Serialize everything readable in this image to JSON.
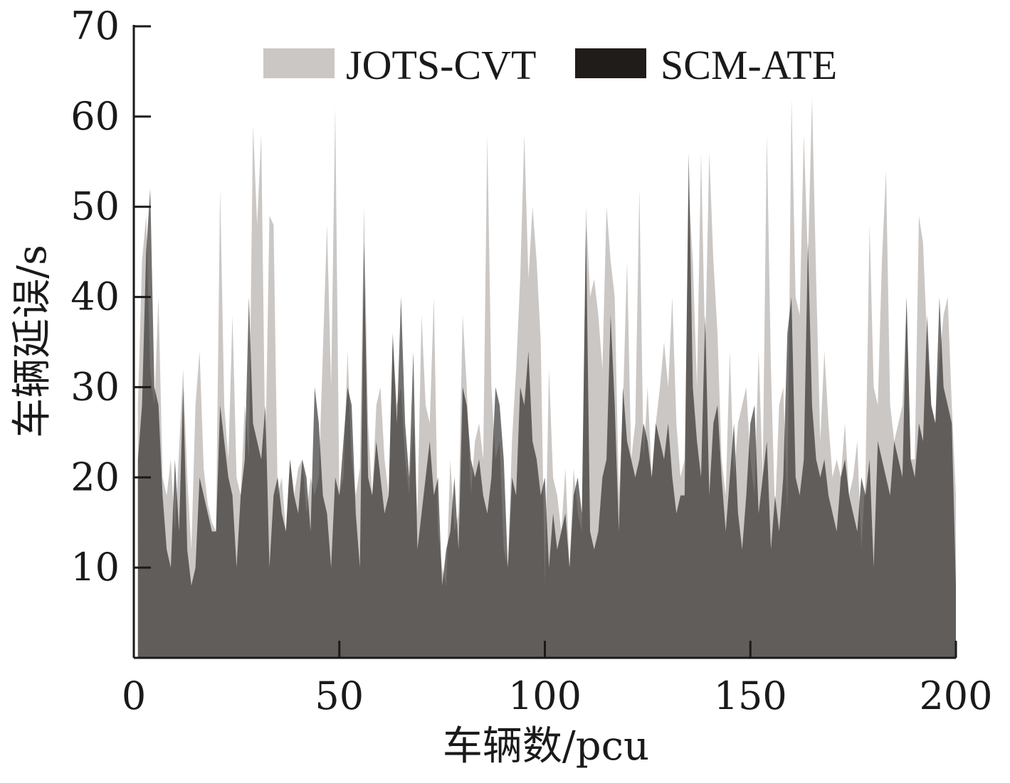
{
  "chart_data": {
    "type": "area",
    "title": "",
    "xlabel": "车辆数/pcu",
    "ylabel": "车辆延误/s",
    "xlim": [
      0,
      200
    ],
    "ylim": [
      0,
      70
    ],
    "xticks": [
      0,
      50,
      100,
      150,
      200
    ],
    "yticks": [
      10,
      20,
      30,
      40,
      50,
      60,
      70
    ],
    "legend_position": "top-center",
    "grid": false,
    "series": [
      {
        "name": "JOTS-CVT",
        "color": "#cbc7c4",
        "values": [
          28,
          44,
          49,
          32,
          28,
          40,
          20,
          18,
          22,
          14,
          23,
          32,
          20,
          12,
          28,
          34,
          21,
          17,
          15,
          14,
          52,
          28,
          22,
          38,
          20,
          18,
          28,
          22,
          59,
          48,
          58,
          22,
          49,
          48,
          18,
          20,
          14,
          22,
          18,
          21,
          22,
          16,
          20,
          18,
          20,
          34,
          48,
          30,
          61,
          18,
          20,
          34,
          22,
          18,
          21,
          50,
          26,
          18,
          28,
          30,
          22,
          18,
          35,
          28,
          30,
          22,
          18,
          26,
          16,
          38,
          28,
          26,
          40,
          14,
          10,
          8,
          22,
          14,
          16,
          38,
          30,
          18,
          24,
          26,
          22,
          58,
          30,
          22,
          24,
          12,
          10,
          24,
          32,
          42,
          58,
          42,
          50,
          44,
          35,
          8,
          32,
          20,
          18,
          14,
          21,
          10,
          21,
          16,
          14,
          50,
          40,
          42,
          38,
          32,
          50,
          44,
          40,
          18,
          28,
          44,
          22,
          26,
          52,
          22,
          30,
          20,
          26,
          30,
          35,
          30,
          40,
          26,
          20,
          22,
          52,
          44,
          30,
          56,
          34,
          56,
          44,
          36,
          22,
          18,
          34,
          20,
          26,
          28,
          30,
          22,
          18,
          34,
          20,
          58,
          32,
          16,
          28,
          30,
          16,
          62,
          40,
          38,
          58,
          44,
          62,
          42,
          24,
          34,
          26,
          20,
          22,
          20,
          26,
          18,
          20,
          24,
          12,
          20,
          48,
          30,
          28,
          44,
          54,
          28,
          24,
          26,
          28,
          40,
          22,
          22,
          49,
          46,
          35,
          28,
          26,
          33,
          38,
          40,
          28,
          18
        ]
      },
      {
        "name": "SCM-ATE",
        "color": "#1f1c1a",
        "values": [
          22,
          28,
          45,
          52,
          30,
          28,
          18,
          12,
          10,
          22,
          14,
          30,
          12,
          8,
          10,
          20,
          18,
          16,
          14,
          14,
          28,
          24,
          20,
          18,
          10,
          18,
          22,
          40,
          26,
          24,
          22,
          28,
          10,
          18,
          20,
          16,
          14,
          22,
          18,
          16,
          22,
          20,
          14,
          30,
          26,
          18,
          16,
          10,
          20,
          18,
          24,
          30,
          28,
          16,
          10,
          46,
          20,
          18,
          24,
          20,
          16,
          18,
          36,
          26,
          40,
          26,
          20,
          34,
          12,
          16,
          20,
          24,
          18,
          20,
          8,
          12,
          14,
          20,
          12,
          30,
          28,
          22,
          20,
          22,
          18,
          16,
          20,
          30,
          28,
          22,
          10,
          20,
          18,
          30,
          28,
          34,
          24,
          22,
          18,
          20,
          10,
          16,
          12,
          14,
          16,
          10,
          18,
          20,
          16,
          48,
          14,
          12,
          14,
          20,
          22,
          38,
          28,
          14,
          30,
          24,
          22,
          20,
          22,
          26,
          24,
          20,
          26,
          24,
          22,
          26,
          20,
          16,
          18,
          18,
          56,
          30,
          24,
          20,
          38,
          18,
          26,
          28,
          20,
          14,
          20,
          26,
          16,
          12,
          18,
          26,
          28,
          16,
          20,
          24,
          12,
          18,
          14,
          20,
          36,
          40,
          20,
          18,
          22,
          46,
          28,
          22,
          20,
          22,
          18,
          16,
          14,
          20,
          22,
          18,
          16,
          14,
          20,
          18,
          22,
          10,
          24,
          22,
          20,
          18,
          24,
          22,
          20,
          40,
          22,
          20,
          26,
          24,
          38,
          28,
          26,
          40,
          30,
          28,
          26,
          8
        ]
      }
    ]
  }
}
